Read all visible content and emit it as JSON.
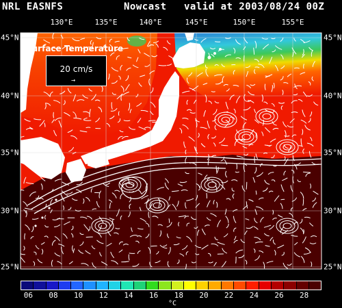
{
  "header": {
    "left": "NRL EASNFS",
    "middle": "Nowcast",
    "right": "valid at 2003/08/24 00Z"
  },
  "axes": {
    "longitudes": [
      "130°E",
      "135°E",
      "140°E",
      "145°E",
      "150°E",
      "155°E"
    ],
    "latitudes": [
      "45°N",
      "40°N",
      "35°N",
      "30°N",
      "25°N"
    ]
  },
  "inset": {
    "title": "Surface Temperature",
    "vector_scale": "20 cm/s"
  },
  "colorbar": {
    "labels": [
      "06",
      "08",
      "10",
      "12",
      "14",
      "16",
      "18",
      "20",
      "22",
      "24",
      "26",
      "28"
    ],
    "unit": "°C",
    "colors": [
      "#0a0a7a",
      "#10109a",
      "#1818c8",
      "#1e3cf0",
      "#2266ff",
      "#1e90ff",
      "#20b4ff",
      "#20d2e6",
      "#20e6b4",
      "#1ed278",
      "#32dc1e",
      "#8ce61e",
      "#d2f01e",
      "#ffff00",
      "#ffd200",
      "#ffaa00",
      "#ff7800",
      "#ff4b00",
      "#ff1e00",
      "#e60000",
      "#b40000",
      "#8c0000",
      "#640000",
      "#4b0000"
    ]
  },
  "map_colors": {
    "land": "#ffffff",
    "warm": "#4a0000",
    "red": "#f01a00",
    "orange": "#ff6400",
    "yellow": "#f0dc00",
    "green": "#3cc85a",
    "cyan": "#32c8dc",
    "blue": "#2a7fd4"
  }
}
